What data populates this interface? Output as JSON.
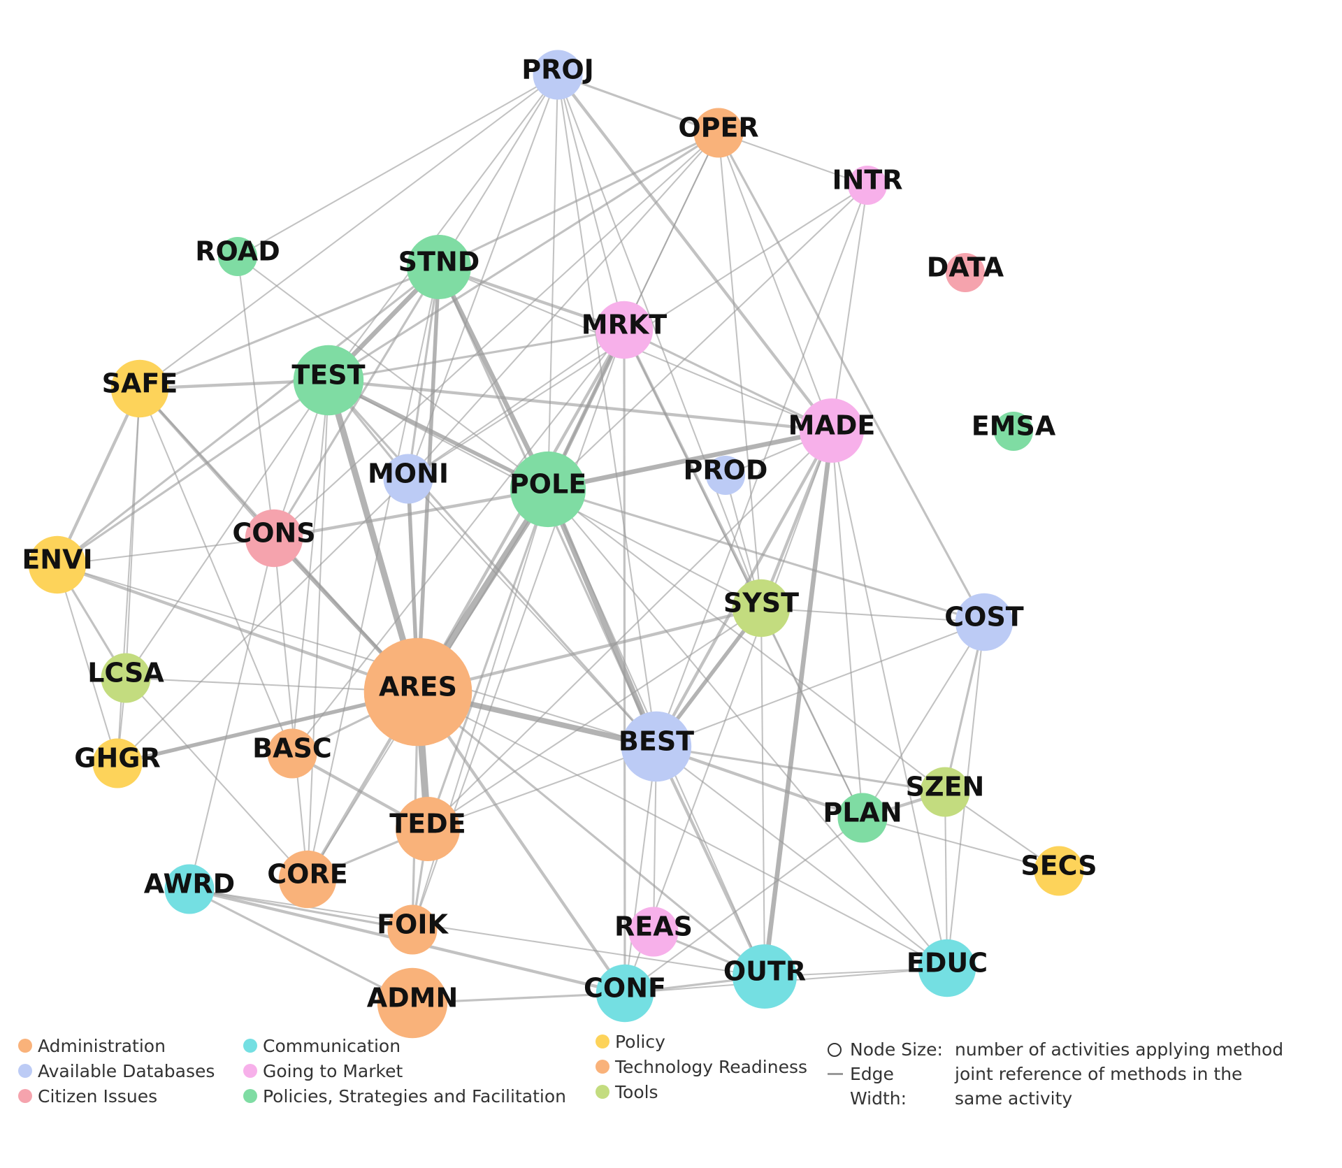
{
  "categories": [
    {
      "key": "admin",
      "label": "Administration",
      "color": "#f9b27a"
    },
    {
      "key": "db",
      "label": "Available Databases",
      "color": "#bccbf5"
    },
    {
      "key": "cit",
      "label": "Citizen Issues",
      "color": "#f5a3ad"
    },
    {
      "key": "comm",
      "label": "Communication",
      "color": "#74dfe2"
    },
    {
      "key": "mkt",
      "label": "Going to Market",
      "color": "#f7b0ea"
    },
    {
      "key": "pol",
      "label": "Policies, Strategies and Facilitation",
      "color": "#7fdca3"
    },
    {
      "key": "policy",
      "label": "Policy",
      "color": "#fdd35a"
    },
    {
      "key": "tech",
      "label": "Technology Readiness",
      "color": "#f9b27a"
    },
    {
      "key": "tools",
      "label": "Tools",
      "color": "#c3dc7f"
    }
  ],
  "notes": [
    {
      "symbol": "circle",
      "term": "Node Size:",
      "description": "number of activities applying method"
    },
    {
      "symbol": "line",
      "term": "Edge Width:",
      "description": "joint reference of methods in the same activity"
    }
  ],
  "nodes": [
    {
      "id": "PROJ",
      "label": "PROJ",
      "category": "db",
      "size": 2
    },
    {
      "id": "OPER",
      "label": "OPER",
      "category": "tech",
      "size": 2
    },
    {
      "id": "INTR",
      "label": "INTR",
      "category": "mkt",
      "size": 1
    },
    {
      "id": "ROAD",
      "label": "ROAD",
      "category": "pol",
      "size": 1
    },
    {
      "id": "STND",
      "label": "STND",
      "category": "pol",
      "size": 4
    },
    {
      "id": "DATA",
      "label": "DATA",
      "category": "cit",
      "size": 1
    },
    {
      "id": "MRKT",
      "label": "MRKT",
      "category": "mkt",
      "size": 3
    },
    {
      "id": "SAFE",
      "label": "SAFE",
      "category": "policy",
      "size": 3
    },
    {
      "id": "TEST",
      "label": "TEST",
      "category": "pol",
      "size": 5
    },
    {
      "id": "MADE",
      "label": "MADE",
      "category": "mkt",
      "size": 4
    },
    {
      "id": "EMSA",
      "label": "EMSA",
      "category": "pol",
      "size": 1
    },
    {
      "id": "MONI",
      "label": "MONI",
      "category": "db",
      "size": 2
    },
    {
      "id": "PROD",
      "label": "PROD",
      "category": "db",
      "size": 1
    },
    {
      "id": "POLE",
      "label": "POLE",
      "category": "pol",
      "size": 6
    },
    {
      "id": "CONS",
      "label": "CONS",
      "category": "cit",
      "size": 3
    },
    {
      "id": "ENVI",
      "label": "ENVI",
      "category": "policy",
      "size": 3
    },
    {
      "id": "SYST",
      "label": "SYST",
      "category": "tools",
      "size": 3
    },
    {
      "id": "COST",
      "label": "COST",
      "category": "db",
      "size": 3
    },
    {
      "id": "LCSA",
      "label": "LCSA",
      "category": "tools",
      "size": 2
    },
    {
      "id": "ARES",
      "label": "ARES",
      "category": "tech",
      "size": 14
    },
    {
      "id": "GHGR",
      "label": "GHGR",
      "category": "policy",
      "size": 2
    },
    {
      "id": "BASC",
      "label": "BASC",
      "category": "tech",
      "size": 2
    },
    {
      "id": "BEST",
      "label": "BEST",
      "category": "db",
      "size": 5
    },
    {
      "id": "SZEN",
      "label": "SZEN",
      "category": "tools",
      "size": 2
    },
    {
      "id": "PLAN",
      "label": "PLAN",
      "category": "pol",
      "size": 2
    },
    {
      "id": "TEDE",
      "label": "TEDE",
      "category": "tech",
      "size": 4
    },
    {
      "id": "SECS",
      "label": "SECS",
      "category": "policy",
      "size": 2
    },
    {
      "id": "AWRD",
      "label": "AWRD",
      "category": "comm",
      "size": 2
    },
    {
      "id": "CORE",
      "label": "CORE",
      "category": "tech",
      "size": 3
    },
    {
      "id": "FOIK",
      "label": "FOIK",
      "category": "tech",
      "size": 2
    },
    {
      "id": "REAS",
      "label": "REAS",
      "category": "mkt",
      "size": 2
    },
    {
      "id": "OUTR",
      "label": "OUTR",
      "category": "comm",
      "size": 4
    },
    {
      "id": "EDUC",
      "label": "EDUC",
      "category": "comm",
      "size": 3
    },
    {
      "id": "ADMN",
      "label": "ADMN",
      "category": "admin",
      "size": 5
    },
    {
      "id": "CONF",
      "label": "CONF",
      "category": "comm",
      "size": 3
    }
  ],
  "edges": [
    [
      "PROJ",
      "OPER",
      2
    ],
    [
      "PROJ",
      "STND",
      1
    ],
    [
      "PROJ",
      "ROAD",
      1
    ],
    [
      "PROJ",
      "SAFE",
      1
    ],
    [
      "PROJ",
      "MONI",
      1
    ],
    [
      "PROJ",
      "POLE",
      1
    ],
    [
      "PROJ",
      "MRKT",
      1
    ],
    [
      "PROJ",
      "MADE",
      3
    ],
    [
      "PROJ",
      "SYST",
      1
    ],
    [
      "PROJ",
      "BEST",
      1
    ],
    [
      "PROJ",
      "TEST",
      1
    ],
    [
      "OPER",
      "STND",
      2
    ],
    [
      "OPER",
      "TEST",
      2
    ],
    [
      "OPER",
      "INTR",
      1
    ],
    [
      "OPER",
      "MADE",
      1
    ],
    [
      "OPER",
      "SYST",
      1
    ],
    [
      "OPER",
      "COST",
      2
    ],
    [
      "OPER",
      "POLE",
      1
    ],
    [
      "OPER",
      "MONI",
      1
    ],
    [
      "OPER",
      "MRKT",
      1
    ],
    [
      "OPER",
      "CONS",
      1
    ],
    [
      "INTR",
      "MADE",
      1
    ],
    [
      "INTR",
      "MONI",
      1
    ],
    [
      "INTR",
      "POLE",
      1
    ],
    [
      "INTR",
      "BEST",
      1
    ],
    [
      "ROAD",
      "CONS",
      1
    ],
    [
      "ROAD",
      "POLE",
      1
    ],
    [
      "STND",
      "TEST",
      5
    ],
    [
      "STND",
      "SAFE",
      2
    ],
    [
      "STND",
      "ARES",
      4
    ],
    [
      "STND",
      "POLE",
      5
    ],
    [
      "STND",
      "MONI",
      2
    ],
    [
      "STND",
      "MRKT",
      3
    ],
    [
      "STND",
      "BEST",
      2
    ],
    [
      "STND",
      "CONS",
      2
    ],
    [
      "STND",
      "ENVI",
      2
    ],
    [
      "STND",
      "MADE",
      1
    ],
    [
      "STND",
      "CORE",
      1
    ],
    [
      "MRKT",
      "POLE",
      4
    ],
    [
      "MRKT",
      "ARES",
      3
    ],
    [
      "MRKT",
      "MADE",
      2
    ],
    [
      "MRKT",
      "SYST",
      3
    ],
    [
      "MRKT",
      "CONF",
      2
    ],
    [
      "MRKT",
      "TEST",
      2
    ],
    [
      "MRKT",
      "MONI",
      1
    ],
    [
      "MRKT",
      "BASC",
      1
    ],
    [
      "MRKT",
      "FOIK",
      1
    ],
    [
      "MRKT",
      "PLAN",
      1
    ],
    [
      "SAFE",
      "TEST",
      3
    ],
    [
      "SAFE",
      "ENVI",
      3
    ],
    [
      "SAFE",
      "LCSA",
      1
    ],
    [
      "SAFE",
      "CONS",
      3
    ],
    [
      "SAFE",
      "ARES",
      2
    ],
    [
      "SAFE",
      "BASC",
      1
    ],
    [
      "SAFE",
      "GHGR",
      1
    ],
    [
      "TEST",
      "ARES",
      7
    ],
    [
      "TEST",
      "POLE",
      4
    ],
    [
      "TEST",
      "MADE",
      3
    ],
    [
      "TEST",
      "MONI",
      2
    ],
    [
      "TEST",
      "CONS",
      1
    ],
    [
      "TEST",
      "ENVI",
      2
    ],
    [
      "TEST",
      "BEST",
      2
    ],
    [
      "TEST",
      "BASC",
      1
    ],
    [
      "TEST",
      "LCSA",
      1
    ],
    [
      "TEST",
      "CORE",
      1
    ],
    [
      "TEST",
      "SYST",
      1
    ],
    [
      "MADE",
      "POLE",
      5
    ],
    [
      "MADE",
      "OUTR",
      5
    ],
    [
      "MADE",
      "SYST",
      3
    ],
    [
      "MADE",
      "BEST",
      3
    ],
    [
      "MADE",
      "EDUC",
      1
    ],
    [
      "MADE",
      "PLAN",
      1
    ],
    [
      "MADE",
      "CONF",
      1
    ],
    [
      "MADE",
      "TEDE",
      1
    ],
    [
      "MADE",
      "PROD",
      1
    ],
    [
      "MONI",
      "ARES",
      4
    ],
    [
      "MONI",
      "BEST",
      1
    ],
    [
      "MONI",
      "GHGR",
      1
    ],
    [
      "PROD",
      "SYST",
      1
    ],
    [
      "POLE",
      "ARES",
      8
    ],
    [
      "POLE",
      "BEST",
      6
    ],
    [
      "POLE",
      "CONS",
      3
    ],
    [
      "POLE",
      "CORE",
      1
    ],
    [
      "POLE",
      "TEDE",
      2
    ],
    [
      "POLE",
      "FOIK",
      1
    ],
    [
      "POLE",
      "COST",
      2
    ],
    [
      "POLE",
      "EDUC",
      1
    ],
    [
      "POLE",
      "OUTR",
      1
    ],
    [
      "POLE",
      "SZEN",
      1
    ],
    [
      "CONS",
      "ARES",
      4
    ],
    [
      "CONS",
      "ENVI",
      1
    ],
    [
      "CONS",
      "CORE",
      1
    ],
    [
      "CONS",
      "AWRD",
      1
    ],
    [
      "ENVI",
      "ARES",
      3
    ],
    [
      "ENVI",
      "LCSA",
      2
    ],
    [
      "ENVI",
      "GHGR",
      1
    ],
    [
      "ENVI",
      "BEST",
      1
    ],
    [
      "SYST",
      "ARES",
      3
    ],
    [
      "SYST",
      "BEST",
      4
    ],
    [
      "SYST",
      "COST",
      1
    ],
    [
      "SYST",
      "OUTR",
      1
    ],
    [
      "SYST",
      "PLAN",
      1
    ],
    [
      "SYST",
      "TEDE",
      1
    ],
    [
      "COST",
      "BEST",
      1
    ],
    [
      "COST",
      "SZEN",
      2
    ],
    [
      "COST",
      "EDUC",
      1
    ],
    [
      "COST",
      "PLAN",
      1
    ],
    [
      "LCSA",
      "ARES",
      1
    ],
    [
      "LCSA",
      "GHGR",
      1
    ],
    [
      "LCSA",
      "CORE",
      1
    ],
    [
      "ARES",
      "GHGR",
      4
    ],
    [
      "ARES",
      "BEST",
      6
    ],
    [
      "ARES",
      "TEDE",
      8
    ],
    [
      "ARES",
      "CORE",
      3
    ],
    [
      "ARES",
      "BASC",
      2
    ],
    [
      "ARES",
      "FOIK",
      2
    ],
    [
      "ARES",
      "CONF",
      3
    ],
    [
      "ARES",
      "OUTR",
      2
    ],
    [
      "ARES",
      "EDUC",
      1
    ],
    [
      "BASC",
      "TEDE",
      3
    ],
    [
      "BEST",
      "PLAN",
      3
    ],
    [
      "BEST",
      "SZEN",
      2
    ],
    [
      "BEST",
      "OUTR",
      3
    ],
    [
      "BEST",
      "EDUC",
      1
    ],
    [
      "BEST",
      "TEDE",
      1
    ],
    [
      "BEST",
      "REAS",
      1
    ],
    [
      "BEST",
      "CONF",
      1
    ],
    [
      "SZEN",
      "PLAN",
      3
    ],
    [
      "SZEN",
      "SECS",
      1
    ],
    [
      "SZEN",
      "EDUC",
      1
    ],
    [
      "PLAN",
      "SECS",
      1
    ],
    [
      "PLAN",
      "CONF",
      1
    ],
    [
      "TEDE",
      "CORE",
      2
    ],
    [
      "TEDE",
      "FOIK",
      2
    ],
    [
      "AWRD",
      "FOIK",
      2
    ],
    [
      "AWRD",
      "CONF",
      3
    ],
    [
      "AWRD",
      "ADMN",
      2
    ],
    [
      "AWRD",
      "OUTR",
      1
    ],
    [
      "REAS",
      "OUTR",
      2
    ],
    [
      "OUTR",
      "CONF",
      2
    ],
    [
      "OUTR",
      "EDUC",
      1
    ],
    [
      "ADMN",
      "CONF",
      2
    ],
    [
      "CONF",
      "EDUC",
      1
    ]
  ]
}
